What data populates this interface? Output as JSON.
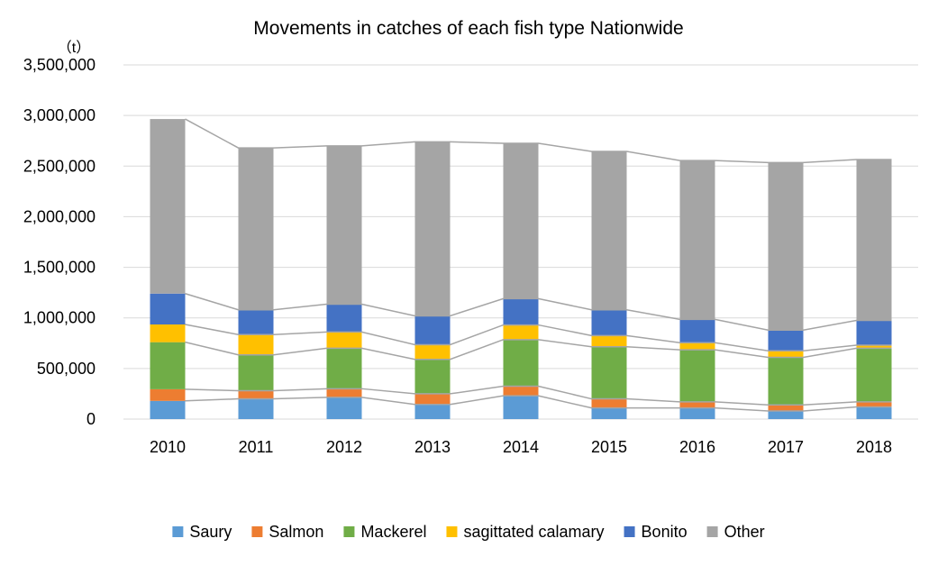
{
  "chart_data": {
    "type": "bar",
    "stacked": true,
    "title": "Movements in catches of each fish type Nationwide",
    "unit_label": "（t）",
    "xlabel": "",
    "ylabel": "",
    "ylim": [
      0,
      3500000
    ],
    "ytick_step": 500000,
    "ytick_labels": [
      "0",
      "500,000",
      "1,000,000",
      "1,500,000",
      "2,000,000",
      "2,500,000",
      "3,000,000",
      "3,500,000"
    ],
    "grid": true,
    "legend_position": "bottom",
    "series_lines": true,
    "categories": [
      "2010",
      "2011",
      "2012",
      "2013",
      "2014",
      "2015",
      "2016",
      "2017",
      "2018"
    ],
    "series": [
      {
        "name": "Saury",
        "color": "#5B9BD5",
        "values": [
          180000,
          200000,
          215000,
          145000,
          230000,
          110000,
          110000,
          80000,
          120000
        ]
      },
      {
        "name": "Salmon",
        "color": "#ED7D31",
        "values": [
          115000,
          80000,
          85000,
          105000,
          95000,
          90000,
          60000,
          60000,
          50000
        ]
      },
      {
        "name": "Mackerel",
        "color": "#70AD47",
        "values": [
          465000,
          355000,
          400000,
          340000,
          460000,
          515000,
          515000,
          470000,
          530000
        ]
      },
      {
        "name": "sagittated calamary",
        "color": "#FFC000",
        "values": [
          175000,
          200000,
          160000,
          145000,
          145000,
          110000,
          70000,
          65000,
          30000
        ]
      },
      {
        "name": "Bonito",
        "color": "#4472C4",
        "values": [
          305000,
          245000,
          275000,
          285000,
          260000,
          255000,
          230000,
          205000,
          245000
        ]
      },
      {
        "name": "Other",
        "color": "#A5A5A5",
        "values": [
          1725000,
          1600000,
          1565000,
          1720000,
          1535000,
          1565000,
          1570000,
          1655000,
          1590000
        ]
      }
    ]
  }
}
